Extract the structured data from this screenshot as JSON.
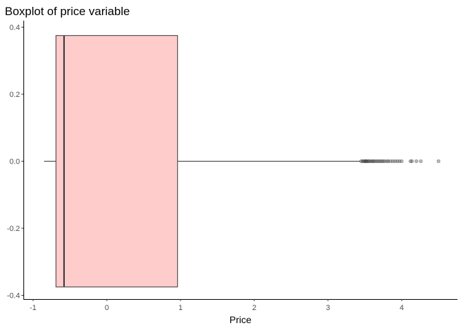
{
  "chart_data": {
    "type": "boxplot",
    "title": "Boxplot of price variable",
    "xlabel": "Price",
    "ylabel": "",
    "orientation": "horizontal",
    "xlim": [
      -1.05,
      4.8
    ],
    "ylim": [
      -0.41,
      0.41
    ],
    "x_ticks": [
      -1,
      0,
      1,
      2,
      3,
      4
    ],
    "x_tick_labels": [
      "-1",
      "0",
      "1",
      "2",
      "3",
      "4"
    ],
    "y_ticks": [
      -0.4,
      -0.2,
      0.0,
      0.2,
      0.4
    ],
    "y_tick_labels": [
      "-0.4",
      "-0.2",
      "0.0",
      "0.2",
      "0.4"
    ],
    "grid": false,
    "box": {
      "y_center": 0.0,
      "y_half_width": 0.375,
      "whisker_low": -0.85,
      "q1": -0.69,
      "median": -0.58,
      "q3": 0.96,
      "whisker_high": 3.44,
      "fill_color": "#ffcccc",
      "line_color": "#333333"
    },
    "outliers": [
      3.45,
      3.47,
      3.48,
      3.5,
      3.51,
      3.52,
      3.53,
      3.55,
      3.56,
      3.58,
      3.6,
      3.61,
      3.63,
      3.65,
      3.67,
      3.69,
      3.71,
      3.73,
      3.75,
      3.77,
      3.8,
      3.82,
      3.85,
      3.88,
      3.91,
      3.94,
      3.97,
      4.0,
      4.12,
      4.14,
      4.2,
      4.26,
      4.5
    ],
    "outlier_color": "#333333"
  }
}
